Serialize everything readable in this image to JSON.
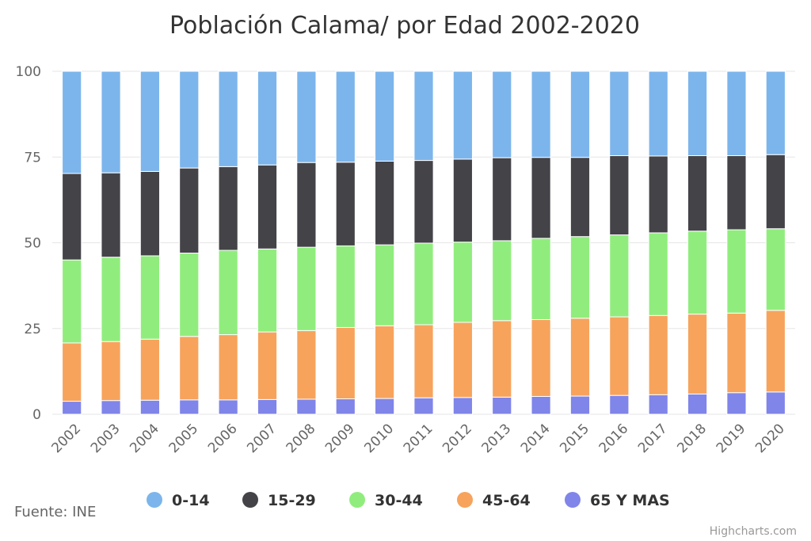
{
  "chart_data": {
    "type": "bar",
    "stacking": "percent",
    "title": "Población Calama/ por Edad 2002-2020",
    "categories": [
      "2002",
      "2003",
      "2004",
      "2005",
      "2006",
      "2007",
      "2008",
      "2009",
      "2010",
      "2011",
      "2012",
      "2013",
      "2014",
      "2015",
      "2016",
      "2017",
      "2018",
      "2019",
      "2020"
    ],
    "ylim": [
      0,
      100
    ],
    "yticks": [
      0,
      25,
      50,
      75,
      100
    ],
    "grid": true,
    "legend_position": "bottom",
    "series": [
      {
        "name": "65 Y MAS",
        "color": "#8085e9",
        "values": [
          3.8,
          4.0,
          4.1,
          4.2,
          4.2,
          4.3,
          4.4,
          4.5,
          4.6,
          4.8,
          4.9,
          5.0,
          5.2,
          5.3,
          5.5,
          5.7,
          5.9,
          6.3,
          6.5
        ]
      },
      {
        "name": "45-64",
        "color": "#f7a35c",
        "values": [
          17.0,
          17.2,
          17.8,
          18.5,
          19.0,
          19.7,
          20.0,
          20.8,
          21.2,
          21.3,
          21.9,
          22.3,
          22.4,
          22.7,
          22.9,
          23.1,
          23.3,
          23.2,
          23.8
        ]
      },
      {
        "name": "30-44",
        "color": "#90ed7d",
        "values": [
          24.2,
          24.6,
          24.3,
          24.3,
          24.6,
          24.2,
          24.3,
          23.8,
          23.6,
          23.8,
          23.4,
          23.3,
          23.7,
          23.8,
          23.9,
          24.1,
          24.2,
          24.3,
          23.8
        ]
      },
      {
        "name": "15-29",
        "color": "#434348",
        "values": [
          25.2,
          24.6,
          24.6,
          24.8,
          24.4,
          24.5,
          24.7,
          24.4,
          24.4,
          24.1,
          24.2,
          24.2,
          23.6,
          23.1,
          23.1,
          22.4,
          22.0,
          21.6,
          21.6
        ]
      },
      {
        "name": "0-14",
        "color": "#7cb5ec",
        "values": [
          29.8,
          29.6,
          29.2,
          28.2,
          27.8,
          27.3,
          26.6,
          26.5,
          26.2,
          26.0,
          25.6,
          25.2,
          25.1,
          25.1,
          24.6,
          24.7,
          24.6,
          24.6,
          24.3
        ]
      }
    ],
    "legend_order": [
      "0-14",
      "15-29",
      "30-44",
      "45-64",
      "65 Y MAS"
    ]
  },
  "source_label": "Fuente: INE",
  "credits": "Highcharts.com"
}
